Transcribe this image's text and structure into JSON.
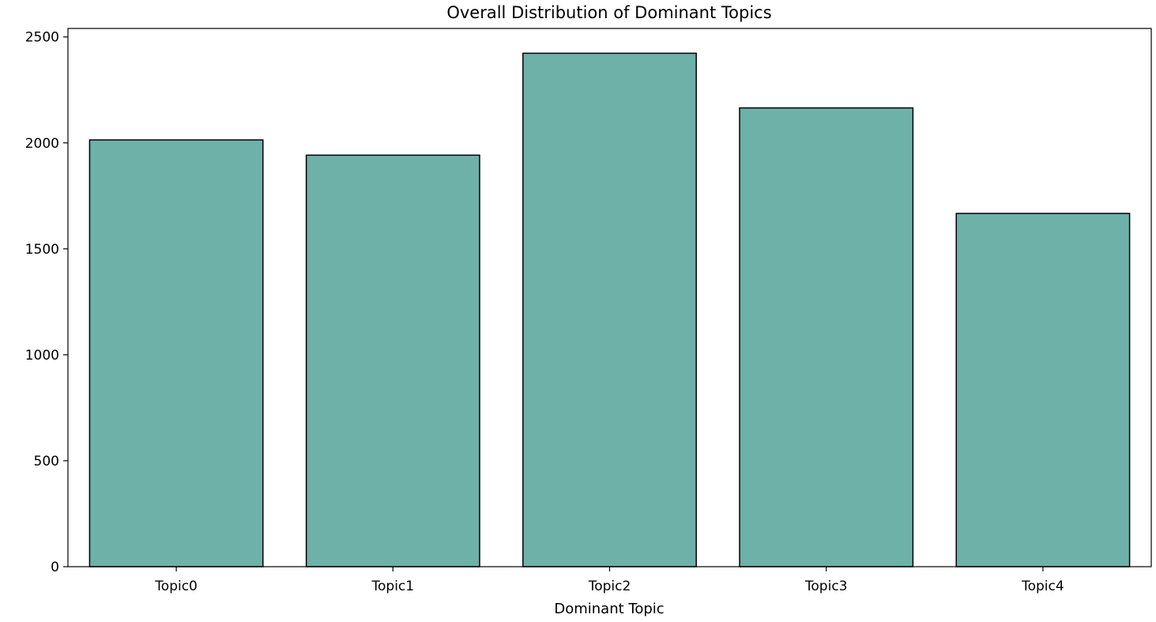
{
  "chart_data": {
    "type": "bar",
    "title": "Overall Distribution of Dominant Topics",
    "xlabel": "Dominant Topic",
    "ylabel": "",
    "categories": [
      "Topic0",
      "Topic1",
      "Topic2",
      "Topic3",
      "Topic4"
    ],
    "values": [
      2014,
      1942,
      2423,
      2165,
      1667
    ],
    "ylim": [
      0,
      2540
    ],
    "yticks": [
      0,
      500,
      1000,
      1500,
      2000,
      2500
    ],
    "ytick_labels": [
      "0",
      "500",
      "1000",
      "1500",
      "2000",
      "2500"
    ],
    "grid": false,
    "legend": "none",
    "colors": {
      "bar_fill": "#6db1a8",
      "bar_edge": "#000000",
      "axis": "#000000",
      "background": "#ffffff"
    }
  }
}
